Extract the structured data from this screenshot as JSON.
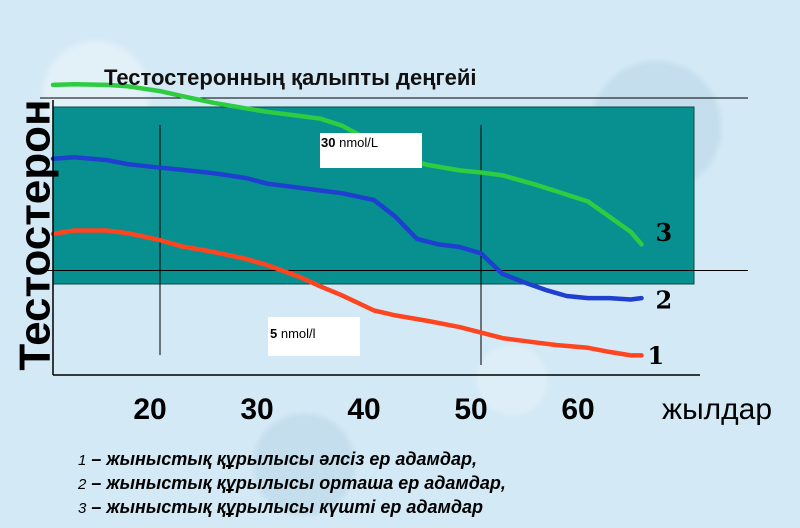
{
  "chart_data": {
    "type": "line",
    "title": "Тестостеронның қалыпты деңгейі",
    "ylabel": "Тестостерон",
    "xlabel": "жылдар",
    "x_ticks": [
      20,
      30,
      40,
      50,
      60
    ],
    "xlim": [
      10,
      66
    ],
    "normal_range_label": "Тестостеронның қалыпты деңгейі",
    "annotations": {
      "upper": {
        "value": "30",
        "unit": "nmol/L"
      },
      "lower": {
        "value": "5",
        "unit": "nmol/l"
      }
    },
    "series": [
      {
        "name": "3",
        "color": "#2ecc40",
        "x": [
          10,
          12,
          15,
          17,
          20,
          22,
          25,
          28,
          30,
          33,
          35,
          37,
          40,
          42,
          45,
          48,
          50,
          52,
          55,
          57,
          60,
          62,
          64,
          65
        ],
        "y": [
          31.9,
          32.0,
          31.9,
          31.7,
          31.0,
          30.3,
          29.3,
          28.5,
          28.0,
          27.4,
          27.0,
          26.0,
          23.5,
          21.6,
          20.3,
          19.5,
          19.2,
          18.8,
          17.5,
          16.5,
          15.0,
          12.8,
          10.6,
          8.8
        ]
      },
      {
        "name": "2",
        "color": "#1e3fd0",
        "x": [
          10,
          12,
          15,
          17,
          20,
          22,
          25,
          28,
          30,
          33,
          35,
          37,
          40,
          42,
          44,
          46,
          48,
          50,
          52,
          54,
          56,
          58,
          60,
          62,
          64,
          65
        ],
        "y": [
          21.2,
          21.4,
          21.0,
          20.4,
          19.9,
          19.6,
          19.1,
          18.4,
          17.6,
          17.0,
          16.6,
          16.2,
          15.2,
          12.8,
          9.6,
          8.8,
          8.4,
          7.5,
          4.5,
          3.3,
          2.2,
          1.3,
          1.0,
          1.0,
          0.8,
          1.0
        ]
      },
      {
        "name": "1",
        "color": "#ff4520",
        "x": [
          10,
          12,
          15,
          17,
          20,
          22,
          25,
          28,
          30,
          33,
          35,
          37,
          40,
          42,
          45,
          48,
          50,
          52,
          55,
          57,
          60,
          62,
          64,
          65
        ],
        "y": [
          10.3,
          10.8,
          10.8,
          10.4,
          9.4,
          8.5,
          7.7,
          6.7,
          5.8,
          4.1,
          2.7,
          1.4,
          -0.8,
          -1.5,
          -2.3,
          -3.2,
          -4.0,
          -4.8,
          -5.4,
          -5.8,
          -6.2,
          -6.8,
          -7.3,
          -7.3
        ]
      }
    ]
  },
  "legend": [
    {
      "num": "1",
      "text": "– жыныстық құрылысы әлсіз ер адамдар,"
    },
    {
      "num": "2",
      "text": "– жыныстық құрылысы орташа ер адамдар,"
    },
    {
      "num": "3",
      "text": "– жыныстық құрылысы күшті ер адамдар"
    }
  ],
  "colors": {
    "normal_band": "#07908f",
    "band_edge": "#0a4a48",
    "background": "#d3e9f5"
  }
}
